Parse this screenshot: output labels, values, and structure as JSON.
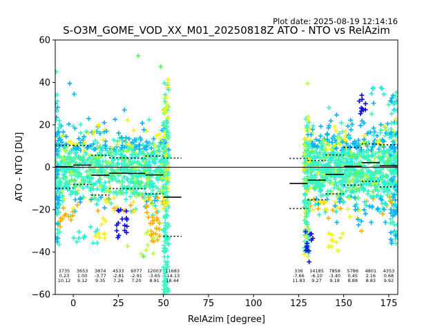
{
  "chart_data": {
    "type": "scatter",
    "plot_date": "Plot date: 2025-08-19 12:14:16",
    "title": "S-O3M_GOME_VOD_XX_M01_20250818Z ATO - NTO vs RelAzim",
    "xlabel": "RelAzim [degree]",
    "ylabel": "ATO - NTO [DU]",
    "xlim": [
      -10,
      180
    ],
    "ylim": [
      -60,
      60
    ],
    "x_ticks": [
      0,
      25,
      50,
      75,
      100,
      125,
      150,
      175
    ],
    "x_tick_labels": [
      "0",
      "25",
      "50",
      "75",
      "100",
      "125",
      "150",
      "175"
    ],
    "y_ticks": [
      -60,
      -40,
      -20,
      0,
      20,
      40,
      60
    ],
    "y_tick_labels": [
      "−60",
      "−40",
      "−20",
      "0",
      "20",
      "40",
      "60"
    ],
    "grid": false,
    "colors": {
      "teal": "#3cf5c0",
      "aqua": "#27f0d8",
      "azure": "#0ab4f5",
      "blue": "#0a4cff",
      "navy": "#1010d8",
      "lime": "#b6ff3a",
      "yellow": "#f2f21a",
      "orange": "#ffb000",
      "green": "#5cf25c",
      "black": "#000000"
    },
    "clusters": [
      {
        "x": [
          -10,
          53
        ],
        "y": [
          -28,
          28
        ]
      },
      {
        "x": [
          128,
          180
        ],
        "y": [
          -30,
          30
        ]
      }
    ],
    "bins": [
      {
        "x": [
          -10,
          0
        ],
        "mean": 0.23,
        "std": 10.12,
        "count": "3735",
        "mean_label": "0.23",
        "std_label": "10.12",
        "label_x": -5
      },
      {
        "x": [
          0,
          10
        ],
        "mean": 1.0,
        "std": 9.12,
        "count": "3653",
        "mean_label": "1.00",
        "std_label": "9.12",
        "label_x": 5
      },
      {
        "x": [
          10,
          20
        ],
        "mean": -3.77,
        "std": 9.35,
        "count": "3874",
        "mean_label": "-3.77",
        "std_label": "9.35",
        "label_x": 15
      },
      {
        "x": [
          20,
          30
        ],
        "mean": -2.81,
        "std": 7.26,
        "count": "4533",
        "mean_label": "-2.81",
        "std_label": "7.26",
        "label_x": 25
      },
      {
        "x": [
          30,
          40
        ],
        "mean": -2.91,
        "std": 7.2,
        "count": "6077",
        "mean_label": "-2.91",
        "std_label": "7.20",
        "label_x": 35
      },
      {
        "x": [
          40,
          50
        ],
        "mean": -3.65,
        "std": 8.91,
        "count": "12003",
        "mean_label": "-3.65",
        "std_label": "8.91",
        "label_x": 45
      },
      {
        "x": [
          50,
          60
        ],
        "mean": -14.13,
        "std": 18.44,
        "count": "11683",
        "mean_label": "-14.13",
        "std_label": "18.44",
        "label_x": 55
      },
      {
        "x": [
          120,
          130
        ],
        "mean": -7.66,
        "std": 11.83,
        "count": "336",
        "mean_label": "-7.66",
        "std_label": "11.83",
        "label_x": 125
      },
      {
        "x": [
          130,
          140
        ],
        "mean": -6.1,
        "std": 9.27,
        "count": "14185",
        "mean_label": "-6.10",
        "std_label": "9.27",
        "label_x": 135
      },
      {
        "x": [
          140,
          150
        ],
        "mean": -3.4,
        "std": 9.18,
        "count": "7858",
        "mean_label": "-3.40",
        "std_label": "9.18",
        "label_x": 145
      },
      {
        "x": [
          150,
          160
        ],
        "mean": 0.45,
        "std": 8.88,
        "count": "5786",
        "mean_label": "0.45",
        "std_label": "8.88",
        "label_x": 155
      },
      {
        "x": [
          160,
          170
        ],
        "mean": 2.16,
        "std": 8.83,
        "count": "4801",
        "mean_label": "2.16",
        "std_label": "8.83",
        "label_x": 165
      },
      {
        "x": [
          170,
          180
        ],
        "mean": 0.68,
        "std": 9.92,
        "count": "4353",
        "mean_label": "0.68",
        "std_label": "9.92",
        "label_x": 175
      }
    ]
  }
}
